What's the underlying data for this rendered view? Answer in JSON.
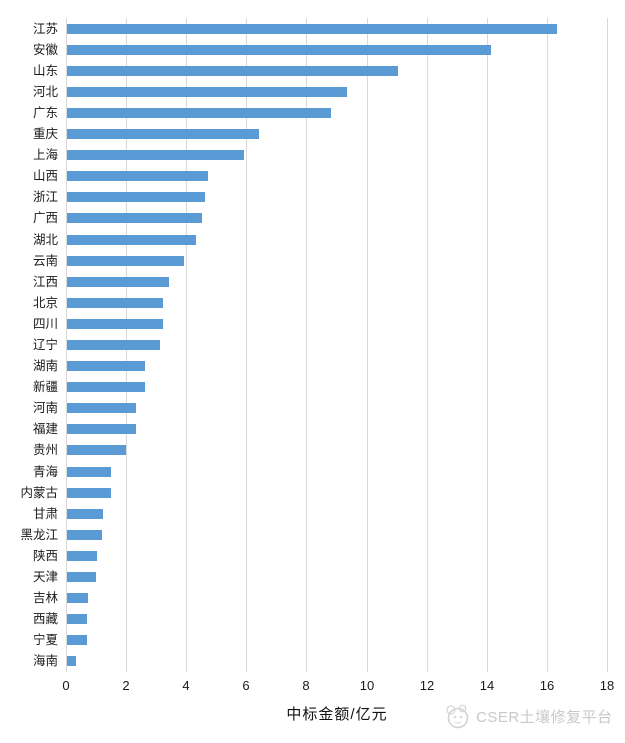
{
  "chart_data": {
    "type": "bar",
    "orientation": "horizontal",
    "title": "",
    "xlabel": "中标金额/亿元",
    "ylabel": "",
    "categories": [
      "江苏",
      "安徽",
      "山东",
      "河北",
      "广东",
      "重庆",
      "上海",
      "山西",
      "浙江",
      "广西",
      "湖北",
      "云南",
      "江西",
      "北京",
      "四川",
      "辽宁",
      "湖南",
      "新疆",
      "河南",
      "福建",
      "贵州",
      "青海",
      "内蒙古",
      "甘肃",
      "黑龙江",
      "陕西",
      "天津",
      "吉林",
      "西藏",
      "宁夏",
      "海南"
    ],
    "values": [
      16.3,
      14.1,
      11.0,
      9.3,
      8.8,
      6.4,
      5.9,
      4.7,
      4.6,
      4.5,
      4.3,
      3.9,
      3.4,
      3.2,
      3.2,
      3.1,
      2.6,
      2.6,
      2.3,
      2.3,
      1.95,
      1.45,
      1.45,
      1.2,
      1.15,
      1.0,
      0.95,
      0.7,
      0.65,
      0.65,
      0.3
    ],
    "xlim": [
      0,
      18
    ],
    "xticks": [
      0,
      2,
      4,
      6,
      8,
      10,
      12,
      14,
      16,
      18
    ],
    "grid": "vertical-only",
    "legend": "none",
    "bar_color": "#5B9BD5",
    "gridline_color": "#D9D9D9",
    "label_color": "#1a1a1a"
  },
  "watermark": {
    "icon": "cser-logo",
    "text": "CSER土壤修复平台",
    "color": "#C9C9C9"
  }
}
